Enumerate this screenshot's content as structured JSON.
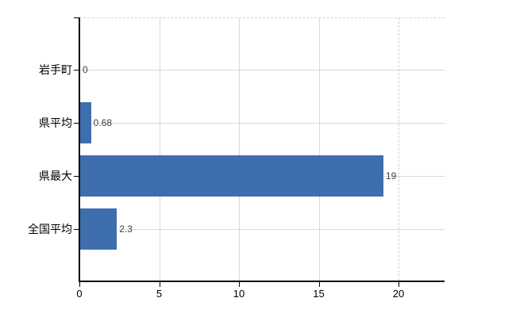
{
  "chart_data": {
    "type": "bar",
    "orientation": "horizontal",
    "title": "",
    "xlabel": "",
    "ylabel": "",
    "categories": [
      "岩手町",
      "県平均",
      "県最大",
      "全国平均"
    ],
    "values": [
      0,
      0.68,
      19,
      2.3
    ],
    "value_labels": [
      "0",
      "0.68",
      "19",
      "2.3"
    ],
    "xticks": [
      0,
      5,
      10,
      15,
      20
    ],
    "xtick_labels": [
      "0",
      "5",
      "10",
      "15",
      "20"
    ],
    "xlim": [
      0,
      23
    ],
    "grid": true,
    "legend": false,
    "colors": {
      "bar": "#3e6ead",
      "gridline": "#d9d9d9",
      "dashed_gridline": "#d2d2c9",
      "axis": "#000000",
      "value_label": "#3f3f3f",
      "tick_label": "#000000",
      "category_label": "#000000",
      "background": "#ffffff"
    }
  }
}
